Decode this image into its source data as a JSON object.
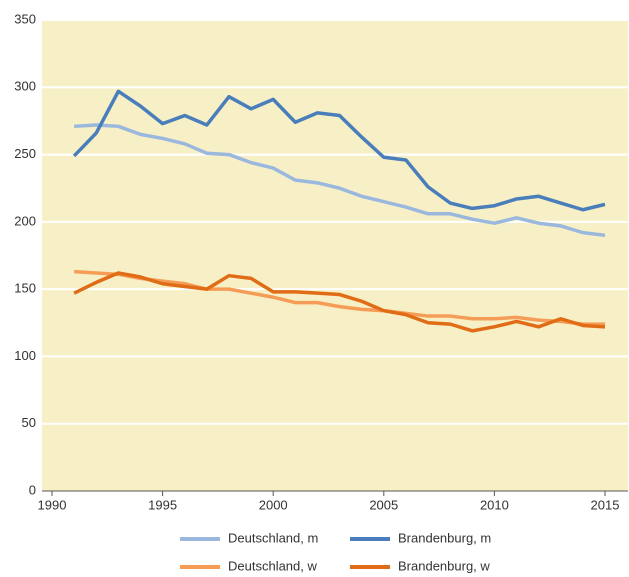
{
  "chart_data": {
    "type": "line",
    "x": [
      1991,
      1992,
      1993,
      1994,
      1995,
      1996,
      1997,
      1998,
      1999,
      2000,
      2001,
      2002,
      2003,
      2004,
      2005,
      2006,
      2007,
      2008,
      2009,
      2010,
      2011,
      2012,
      2013,
      2014,
      2015
    ],
    "series": [
      {
        "name": "Deutschland, m",
        "color": "#9ab7dd",
        "values": [
          271,
          272,
          271,
          265,
          262,
          258,
          251,
          250,
          244,
          240,
          231,
          229,
          225,
          219,
          215,
          211,
          206,
          206,
          202,
          199,
          203,
          199,
          197,
          192,
          190
        ]
      },
      {
        "name": "Brandenburg, m",
        "color": "#4a7ebb",
        "values": [
          249,
          266,
          297,
          286,
          273,
          279,
          272,
          293,
          284,
          291,
          274,
          281,
          279,
          263,
          248,
          246,
          226,
          214,
          210,
          212,
          217,
          219,
          214,
          209,
          213
        ]
      },
      {
        "name": "Deutschland, w",
        "color": "#f59d56",
        "values": [
          163,
          162,
          161,
          158,
          156,
          154,
          150,
          150,
          147,
          144,
          140,
          140,
          137,
          135,
          134,
          132,
          130,
          130,
          128,
          128,
          129,
          127,
          126,
          124,
          124
        ]
      },
      {
        "name": "Brandenburg, w",
        "color": "#e06c16",
        "values": [
          147,
          155,
          162,
          159,
          154,
          152,
          150,
          160,
          158,
          148,
          148,
          147,
          146,
          141,
          134,
          131,
          125,
          124,
          119,
          122,
          126,
          122,
          128,
          123,
          122
        ]
      }
    ],
    "xlim": [
      1990,
      2015
    ],
    "xticks": [
      1990,
      1995,
      2000,
      2005,
      2010,
      2015
    ],
    "ylim": [
      0,
      350
    ],
    "yticks": [
      0,
      50,
      100,
      150,
      200,
      250,
      300,
      350
    ],
    "grid": true,
    "legend": "bottom"
  }
}
